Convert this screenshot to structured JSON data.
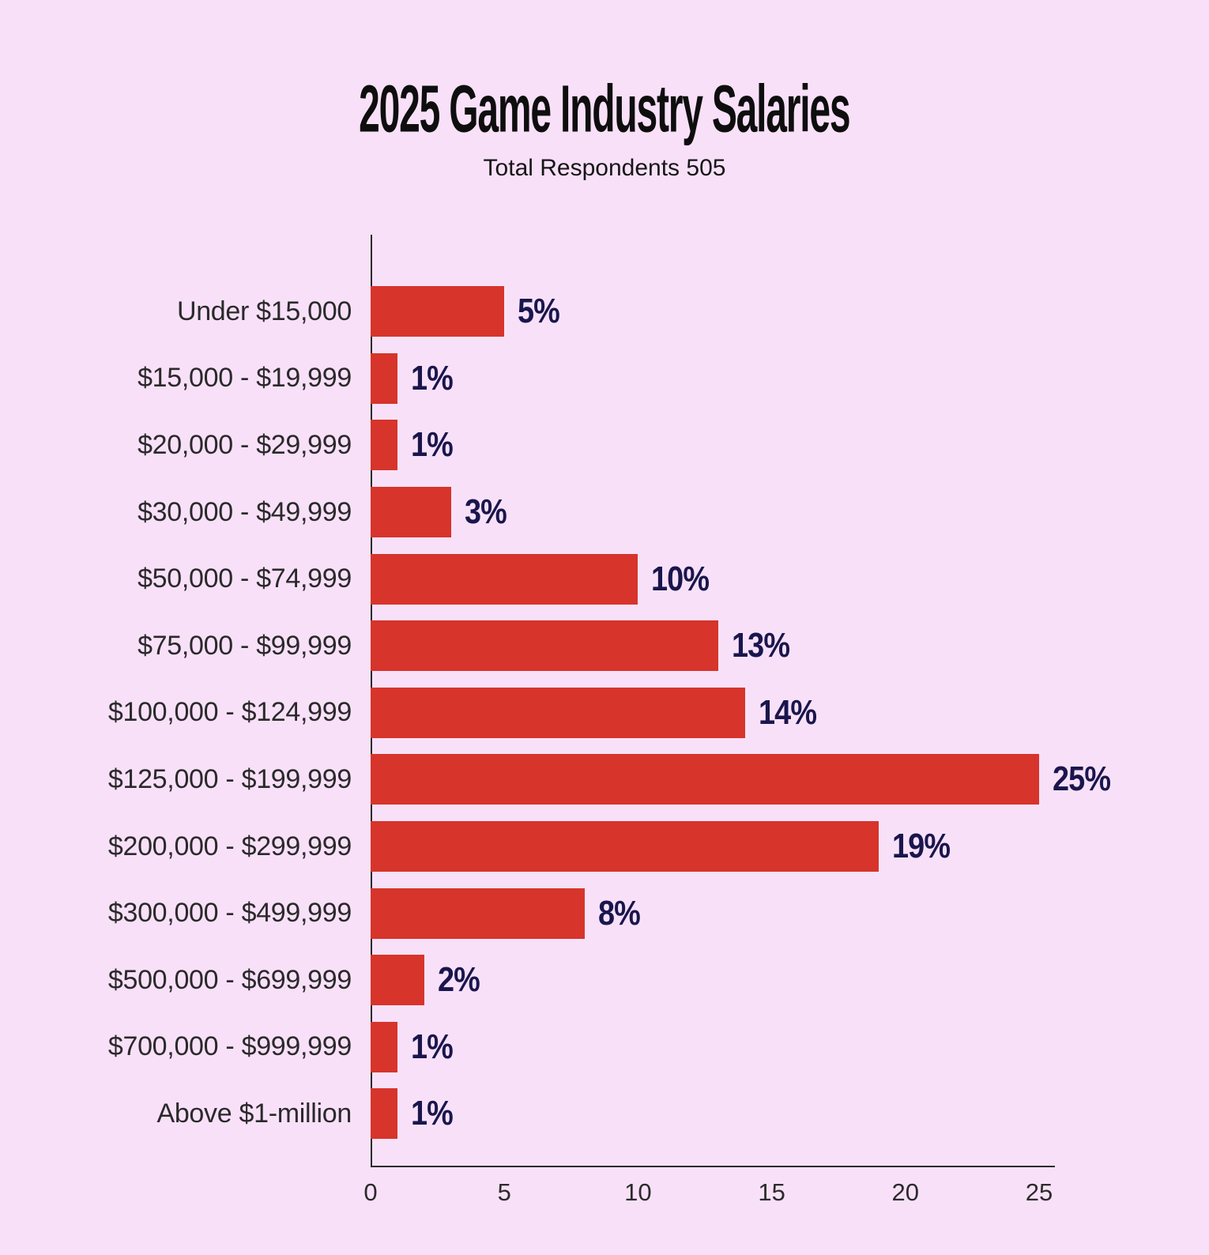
{
  "header": {
    "title": "2025 Game Industry Salaries",
    "subtitle": "Total Respondents 505"
  },
  "chart_data": {
    "type": "bar",
    "orientation": "horizontal",
    "title": "2025 Game Industry Salaries",
    "subtitle": "Total Respondents 505",
    "categories": [
      "Under $15,000",
      "$15,000 - $19,999",
      "$20,000 - $29,999",
      "$30,000 - $49,999",
      "$50,000 - $74,999",
      "$75,000 - $99,999",
      "$100,000 - $124,999",
      "$125,000 - $199,999",
      "$200,000 - $299,999",
      "$300,000 - $499,999",
      "$500,000 - $699,999",
      "$700,000 - $999,999",
      "Above $1-million"
    ],
    "values": [
      5,
      1,
      1,
      3,
      10,
      13,
      14,
      25,
      19,
      8,
      2,
      1,
      1
    ],
    "value_labels": [
      "5%",
      "1%",
      "1%",
      "3%",
      "10%",
      "13%",
      "14%",
      "25%",
      "19%",
      "8%",
      "2%",
      "1%",
      "1%"
    ],
    "xlabel": "",
    "ylabel": "",
    "xlim": [
      0,
      25
    ],
    "x_ticks": [
      0,
      5,
      10,
      15,
      20,
      25
    ],
    "grid": false,
    "legend": "none",
    "colors": {
      "background": "#f8e1f8",
      "bar": "#d7342b",
      "value_label": "#1a164d",
      "category_label": "#2b292b",
      "axis": "#2b2b2b",
      "title": "#0e0e0e"
    }
  }
}
